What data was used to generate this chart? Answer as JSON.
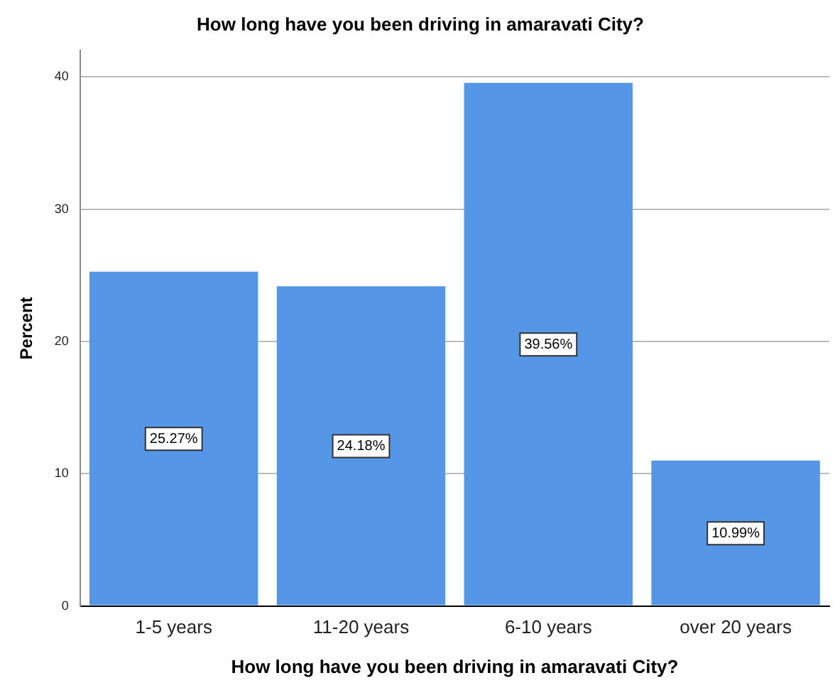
{
  "chart_data": {
    "type": "bar",
    "title": "How long have you been driving in amaravati City?",
    "xlabel": "How long have you been driving in amaravati City?",
    "ylabel": "Percent",
    "categories": [
      "1-5 years",
      "11-20 years",
      "6-10 years",
      "over 20 years"
    ],
    "values": [
      25.27,
      24.18,
      39.56,
      10.99
    ],
    "value_labels": [
      "25.27%",
      "24.18%",
      "39.56%",
      "10.99%"
    ],
    "color": "#5596e6",
    "ylim": [
      0,
      42
    ],
    "yticks": [
      0,
      10,
      20,
      30,
      40
    ],
    "grid": "y",
    "legend": false
  }
}
